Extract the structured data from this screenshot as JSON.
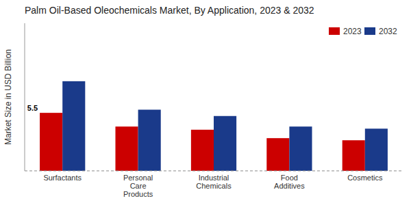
{
  "chart_data": {
    "type": "bar",
    "title": "Palm Oil-Based Oleochemicals Market, By Application, 2023 & 2032",
    "y_label": "Market Size in USD Billion",
    "categories": [
      "Surfactants",
      "Personal\nCare\nProducts",
      "Industrial\nChemicals",
      "Food\nAdditives",
      "Cosmetics"
    ],
    "series": [
      {
        "name": "2023",
        "color": "#cc0000",
        "values": [
          5.5,
          4.2,
          3.9,
          3.1,
          2.9
        ]
      },
      {
        "name": "2032",
        "color": "#1a3a8a",
        "values": [
          8.5,
          5.8,
          5.2,
          4.2,
          4.0
        ]
      }
    ],
    "annotations": [
      {
        "text": "5.5",
        "x": "Surfactants",
        "y": 5.5
      }
    ],
    "ylim": [
      0,
      14
    ],
    "yticks": [],
    "grid": false,
    "legend": "upper right",
    "tick_labels": "x"
  }
}
